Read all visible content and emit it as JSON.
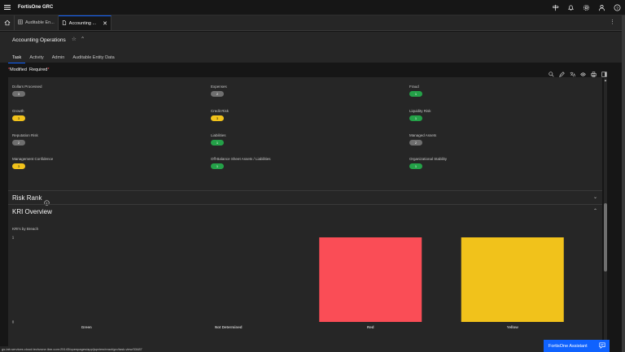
{
  "app": {
    "brand": "FortisOne GRC"
  },
  "window_tabs": [
    {
      "label": "Auditable En...",
      "icon": "grid-icon"
    },
    {
      "label": "Accounting ...",
      "icon": "document-icon",
      "closable": true
    }
  ],
  "page": {
    "title": "Accounting Operations",
    "tabs": [
      "Task",
      "Activity",
      "Admin",
      "Auditable Entity Data"
    ],
    "active_tab": "Task"
  },
  "toolbar": {
    "modified": "Modified",
    "required": "Required"
  },
  "fields": [
    {
      "label": "Dollars Processed",
      "value": "3",
      "color": "gray"
    },
    {
      "label": "Expenses",
      "value": "2",
      "color": "gray"
    },
    {
      "label": "Fraud",
      "value": "1",
      "color": "green"
    },
    {
      "label": "Growth",
      "value": "3",
      "color": "yellow"
    },
    {
      "label": "Credit Risk",
      "value": "3",
      "color": "yellow"
    },
    {
      "label": "Liquidity Risk",
      "value": "1",
      "color": "green"
    },
    {
      "label": "Reputation Risk",
      "value": "2",
      "color": "gray"
    },
    {
      "label": "Liabilities",
      "value": "1",
      "color": "green"
    },
    {
      "label": "Managed Assets",
      "value": "2",
      "color": "gray"
    },
    {
      "label": "Management Confidence",
      "value": "3",
      "color": "yellow"
    },
    {
      "label": "Off-Balance Sheet Assets / Liabilities",
      "value": "1",
      "color": "green"
    },
    {
      "label": "Organizational Stability",
      "value": "1",
      "color": "green"
    }
  ],
  "sections": {
    "risk_rank": "Risk Rank",
    "kri_overview": "KRI Overview"
  },
  "chart_data": {
    "type": "bar",
    "title": "KRI's by Breach",
    "categories": [
      "Green",
      "Not Determined",
      "Red",
      "Yellow"
    ],
    "values": [
      0,
      0,
      1,
      1
    ],
    "colors": [
      "#24a148",
      "#8d8d8d",
      "#fa4d56",
      "#f1c21b"
    ],
    "ylim": [
      0,
      1
    ],
    "yticks": [
      "0",
      "1"
    ],
    "grid": false
  },
  "status_url": "gs-lab.services.cloud.techzone.ibm.com:25143/openpages/app/jspview/react/grc/task-view/33487",
  "assistant": {
    "label": "FortisOne Assistant"
  },
  "colors": {
    "accent": "#0f62fe",
    "gray_badge": "#6f6f6f",
    "yellow_badge": "#f1c21b",
    "green_badge": "#24a148"
  }
}
